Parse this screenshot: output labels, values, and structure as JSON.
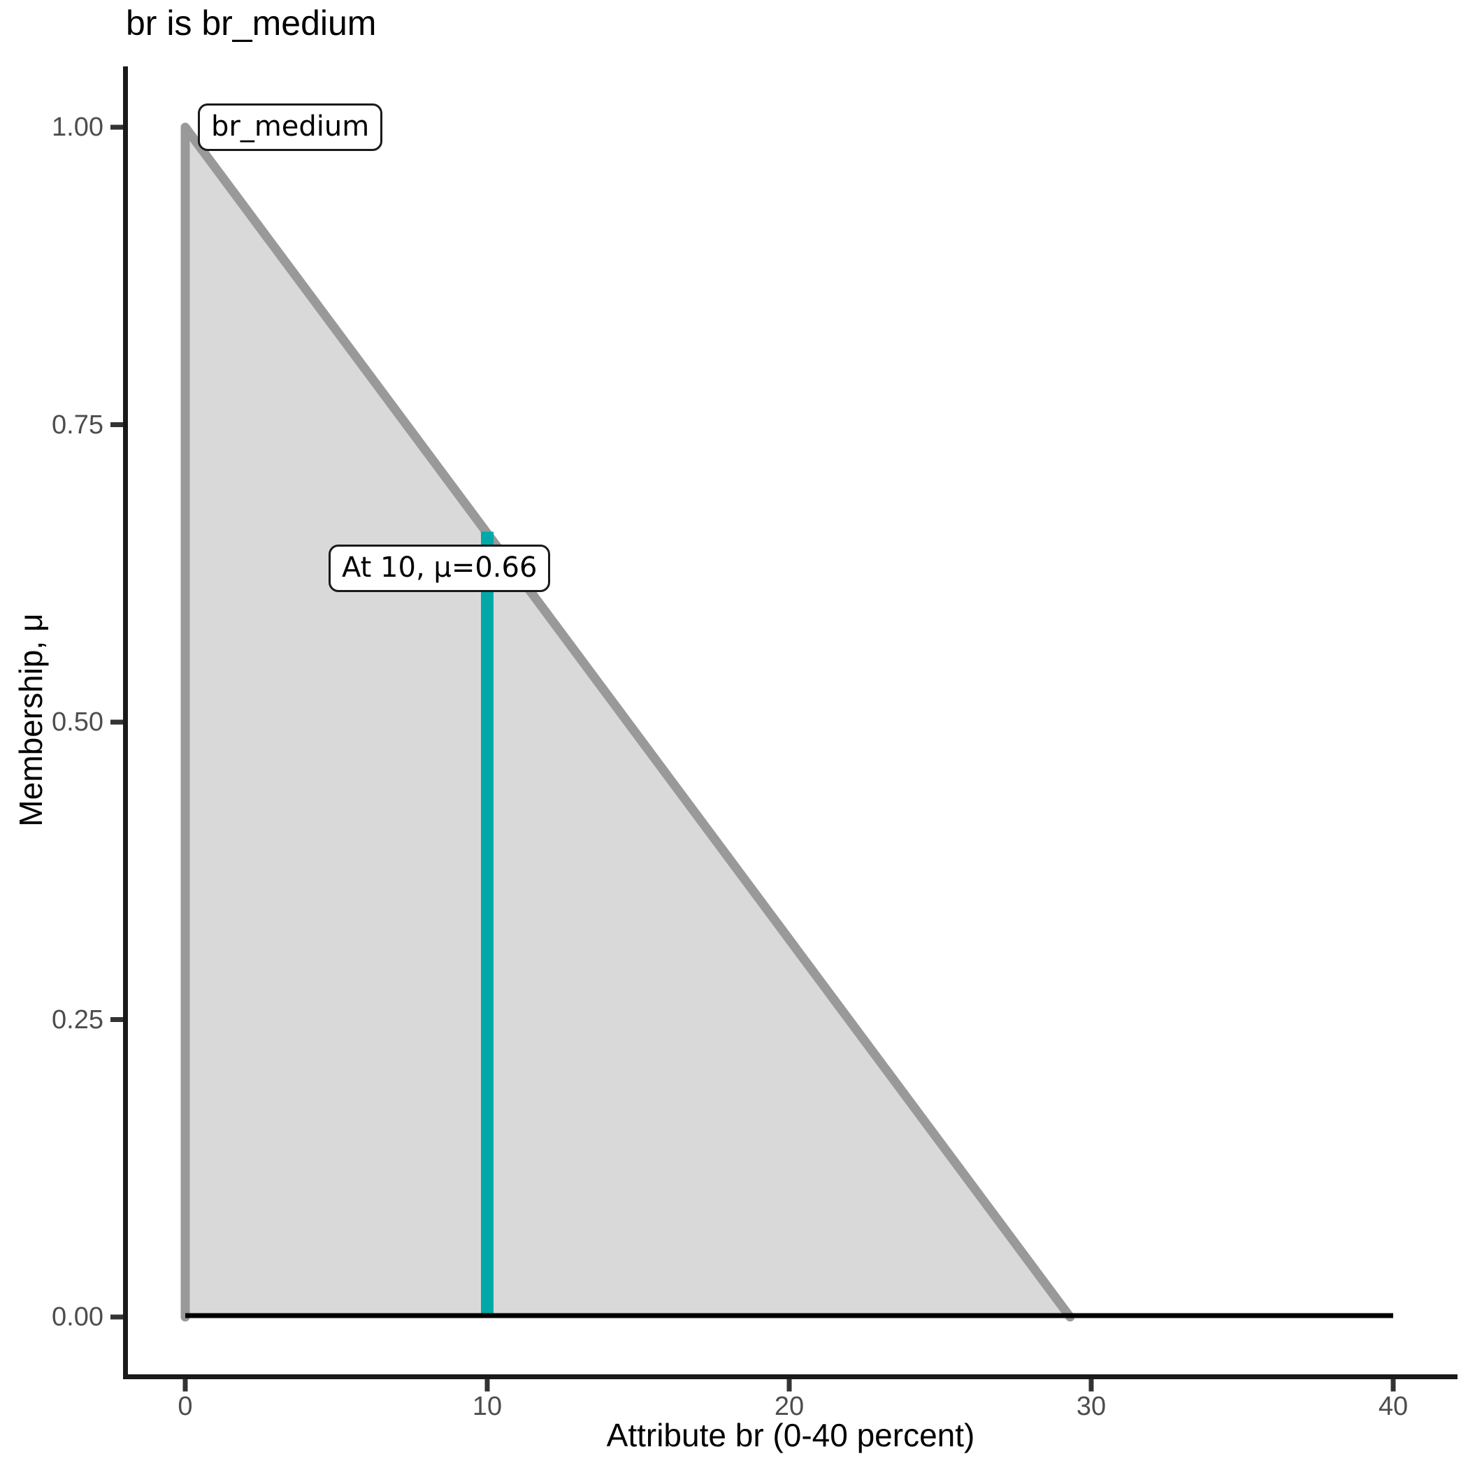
{
  "chart_data": {
    "type": "area",
    "title": "br is br_medium",
    "xlabel": "Attribute br (0-40 percent)",
    "ylabel": "Membership, μ",
    "xlim": [
      0,
      40
    ],
    "ylim": [
      0,
      1
    ],
    "grid": false,
    "legend": "none",
    "x_ticks": [
      {
        "value": 0,
        "label": "0"
      },
      {
        "value": 10,
        "label": "10"
      },
      {
        "value": 20,
        "label": "20"
      },
      {
        "value": 30,
        "label": "30"
      },
      {
        "value": 40,
        "label": "40"
      }
    ],
    "y_ticks": [
      {
        "value": 0,
        "label": "0.00"
      },
      {
        "value": 0.25,
        "label": "0.25"
      },
      {
        "value": 0.5,
        "label": "0.50"
      },
      {
        "value": 0.75,
        "label": "0.75"
      },
      {
        "value": 1,
        "label": "1.00"
      }
    ],
    "membership_function": {
      "name": "br_medium",
      "shape": "triangle",
      "points": [
        {
          "x": 0,
          "mu": 0
        },
        {
          "x": 0,
          "mu": 1
        },
        {
          "x": 29.3,
          "mu": 0
        },
        {
          "x": 40,
          "mu": 0
        }
      ],
      "fill_color": "#D9D9D9",
      "border_color": "#999999"
    },
    "baseline": {
      "from_x": 0,
      "to_x": 40,
      "mu": 0,
      "color": "#000000"
    },
    "marker": {
      "x": 10,
      "mu": 0.66,
      "label": "At 10, μ=0.66",
      "color": "#00A9A8"
    },
    "set_label": {
      "text": "br_medium",
      "anchor_x": 0.4,
      "anchor_mu": 1.0
    },
    "axis_color": "#1a1a1a",
    "tick_color": "#333333",
    "tick_label_color": "#4d4d4d"
  }
}
